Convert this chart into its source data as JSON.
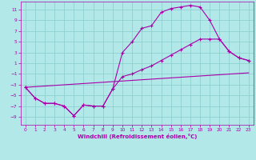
{
  "xlabel": "Windchill (Refroidissement éolien,°C)",
  "bg_color": "#b2e8e8",
  "grid_color": "#88cccc",
  "line_color": "#aa00aa",
  "spine_color": "#aa00aa",
  "xlim": [
    -0.5,
    23.5
  ],
  "ylim": [
    -10.5,
    12.5
  ],
  "xticks": [
    0,
    1,
    2,
    3,
    4,
    5,
    6,
    7,
    8,
    9,
    10,
    11,
    12,
    13,
    14,
    15,
    16,
    17,
    18,
    19,
    20,
    21,
    22,
    23
  ],
  "yticks": [
    -9,
    -7,
    -5,
    -3,
    -1,
    1,
    3,
    5,
    7,
    9,
    11
  ],
  "curve1_x": [
    0,
    1,
    2,
    3,
    4,
    5,
    6,
    7,
    8,
    9,
    10,
    11,
    12,
    13,
    14,
    15,
    16,
    17,
    18,
    19,
    20,
    21,
    22,
    23
  ],
  "curve1_y": [
    -3.5,
    -5.5,
    -6.5,
    -6.5,
    -7.0,
    -8.8,
    -6.8,
    -7.0,
    -7.0,
    -3.8,
    3.0,
    5.0,
    7.5,
    8.0,
    10.5,
    11.2,
    11.5,
    11.8,
    11.5,
    9.0,
    5.5,
    3.2,
    2.0,
    1.5
  ],
  "curve2_x": [
    0,
    1,
    2,
    3,
    4,
    5,
    6,
    7,
    8,
    9,
    10,
    11,
    12,
    13,
    14,
    15,
    16,
    17,
    18,
    19,
    20,
    21,
    22,
    23
  ],
  "curve2_y": [
    -3.5,
    -5.5,
    -6.5,
    -6.5,
    -7.0,
    -8.8,
    -6.8,
    -7.0,
    -7.0,
    -3.8,
    -1.5,
    -1.0,
    -0.2,
    0.5,
    1.5,
    2.5,
    3.5,
    4.5,
    5.5,
    5.5,
    5.5,
    3.2,
    2.0,
    1.5
  ],
  "curve3_x": [
    0,
    23
  ],
  "curve3_y": [
    -3.5,
    -0.8
  ]
}
